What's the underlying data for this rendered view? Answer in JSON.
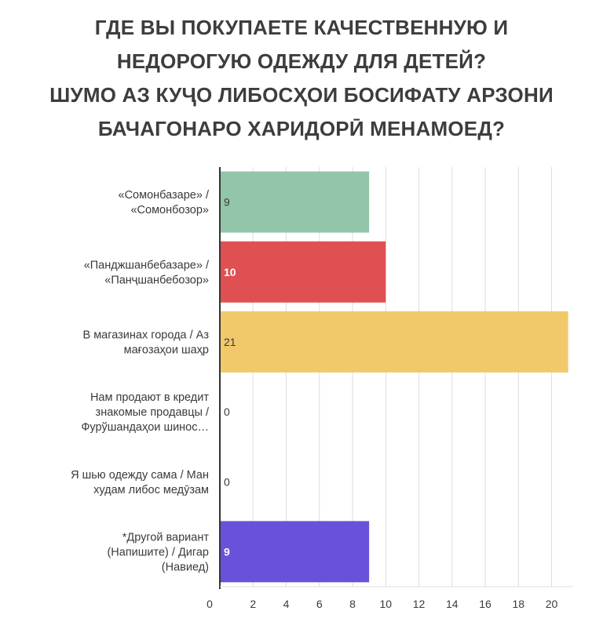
{
  "chart_data": {
    "type": "bar",
    "orientation": "horizontal",
    "title": [
      "ГДЕ ВЫ ПОКУПАЕТЕ КАЧЕСТВЕННУЮ И",
      "НЕДОРОГУЮ ОДЕЖДУ ДЛЯ ДЕТЕЙ?",
      "ШУМО АЗ КУҶО ЛИБОСҲОИ БОСИФАТУ АРЗОНИ",
      "БАЧАГОНАРО ХАРИДОРӢ МЕНАМОЕД?"
    ],
    "categories": [
      [
        "«Сомонбазаре» /",
        "«Сомонбозор»"
      ],
      [
        "«Панджшанбебазаре» /",
        "«Панҷшанбебозор»"
      ],
      [
        "В магазинах города / Аз",
        "мағозаҳои шаҳр"
      ],
      [
        "Нам продают в кредит",
        "знакомые продавцы /",
        "Фурўшандаҳои шинос…"
      ],
      [
        "Я шью одежду сама / Ман",
        "худам либос медӯзам"
      ],
      [
        "*Другой вариант",
        "(Напишите) / Дигар",
        "(Навиед)"
      ]
    ],
    "values": [
      9,
      10,
      21,
      0,
      0,
      9
    ],
    "data_labels": [
      "9",
      "10",
      "21",
      "0",
      "0",
      "9"
    ],
    "colors": [
      "#93c6a9",
      "#df5053",
      "#f1c96b",
      "#999999",
      "#999999",
      "#6a51d9"
    ],
    "label_colors": [
      "#3a3a3a",
      "#ffffff",
      "#3a3a3a",
      "#3a3a3a",
      "#3a3a3a",
      "#ffffff"
    ],
    "x_ticks": [
      0,
      2,
      4,
      6,
      8,
      10,
      12,
      14,
      16,
      18,
      20
    ],
    "xlim": [
      0,
      21.3
    ],
    "grid": true,
    "gridline_color": "#dddddd",
    "axis_color": "#333333"
  }
}
